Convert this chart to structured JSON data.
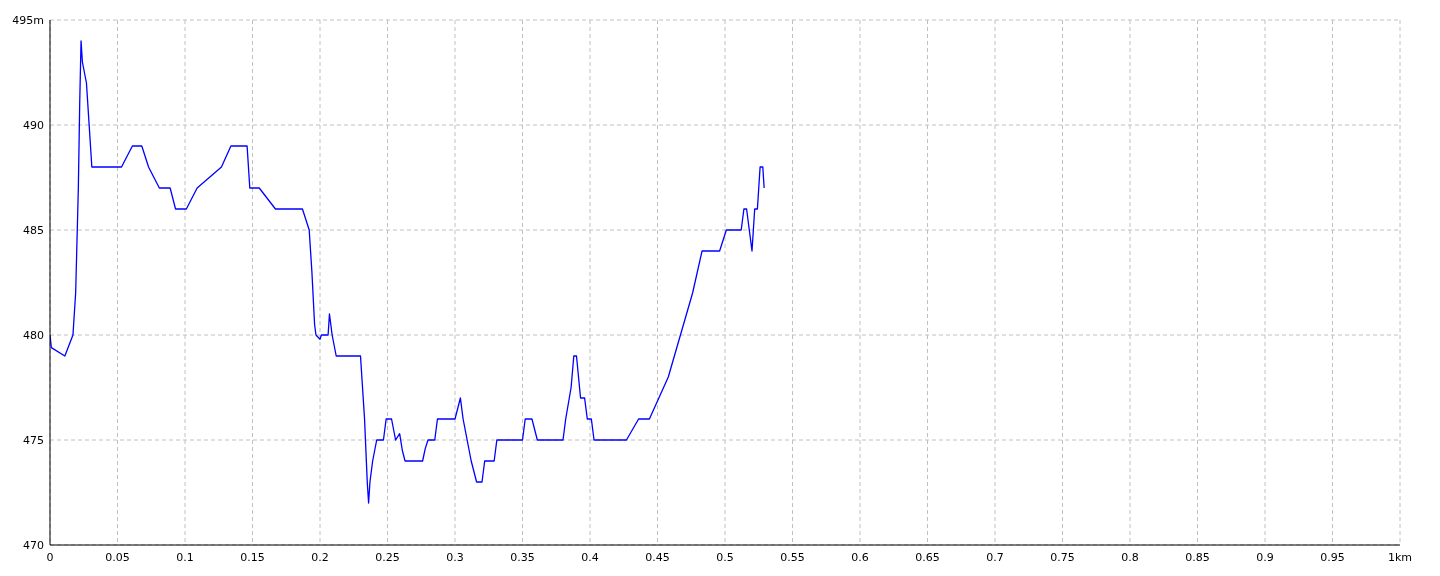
{
  "chart_data": {
    "type": "line",
    "x": [
      0,
      0.001,
      0.011,
      0.017,
      0.019,
      0.021,
      0.022,
      0.023,
      0.024,
      0.027,
      0.029,
      0.031,
      0.053,
      0.061,
      0.068,
      0.073,
      0.081,
      0.089,
      0.093,
      0.101,
      0.109,
      0.127,
      0.134,
      0.146,
      0.148,
      0.155,
      0.167,
      0.187,
      0.192,
      0.194,
      0.196,
      0.197,
      0.2,
      0.201,
      0.206,
      0.207,
      0.209,
      0.212,
      0.23,
      0.233,
      0.235,
      0.236,
      0.237,
      0.239,
      0.242,
      0.247,
      0.249,
      0.253,
      0.256,
      0.259,
      0.261,
      0.263,
      0.276,
      0.278,
      0.28,
      0.285,
      0.287,
      0.3,
      0.304,
      0.306,
      0.309,
      0.312,
      0.316,
      0.32,
      0.322,
      0.329,
      0.331,
      0.35,
      0.352,
      0.357,
      0.361,
      0.38,
      0.382,
      0.386,
      0.388,
      0.39,
      0.393,
      0.396,
      0.398,
      0.401,
      0.403,
      0.427,
      0.436,
      0.444,
      0.458,
      0.476,
      0.483,
      0.496,
      0.501,
      0.512,
      0.514,
      0.516,
      0.518,
      0.52,
      0.522,
      0.524,
      0.525,
      0.526,
      0.528,
      0.529
    ],
    "series": [
      {
        "color": "#0000ff",
        "values": [
          480,
          479.4,
          479,
          480,
          482,
          487,
          491,
          494,
          493,
          492,
          490,
          488,
          488,
          489,
          489,
          488,
          487,
          487,
          486,
          486,
          487,
          488,
          489,
          489,
          487,
          487,
          486,
          486,
          485,
          483,
          480.5,
          480,
          479.8,
          480,
          480,
          481,
          480,
          479,
          479,
          476,
          473,
          472,
          473,
          474,
          475,
          475,
          476,
          476,
          475,
          475.3,
          474.5,
          474,
          474,
          474.6,
          475,
          475,
          476,
          476,
          477,
          476,
          475,
          474,
          473,
          473,
          474,
          474,
          475,
          475,
          476,
          476,
          475,
          475,
          476,
          477.5,
          479,
          479,
          477,
          477,
          476,
          476,
          475,
          475,
          476,
          476,
          478,
          482,
          484,
          484,
          485,
          485,
          486,
          486,
          485,
          484,
          486,
          486,
          487,
          488,
          488,
          487
        ]
      }
    ],
    "xlim": [
      0,
      1
    ],
    "xticks": [
      0,
      0.05,
      0.1,
      0.15,
      0.2,
      0.25,
      0.3,
      0.35,
      0.4,
      0.45,
      0.5,
      0.55,
      0.6,
      0.65,
      0.7,
      0.75,
      0.8,
      0.85,
      0.9,
      0.95,
      {
        "value": 1,
        "label": "1km"
      }
    ],
    "ylim": [
      470,
      495
    ],
    "yticks": [
      470,
      475,
      480,
      485,
      490,
      {
        "value": 495,
        "label": "495m"
      }
    ],
    "grid": true,
    "marker": "none",
    "line_style": "solid"
  }
}
